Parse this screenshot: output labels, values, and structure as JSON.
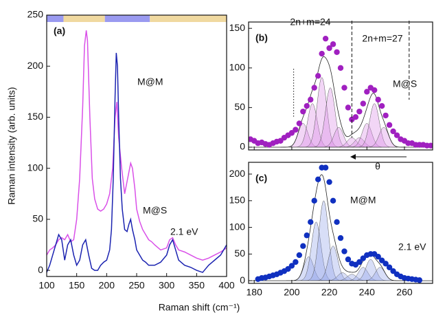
{
  "chart_data": [
    {
      "type": "line",
      "panel_label": "(a)",
      "xlabel": "Raman shift (cm⁻¹)",
      "ylabel": "Raman intensity (arb. units)",
      "xlim": [
        100,
        400
      ],
      "ylim": [
        -6,
        250
      ],
      "xticks": [
        100,
        150,
        200,
        250,
        300,
        350,
        400
      ],
      "yticks": [
        0,
        50,
        100,
        150,
        200,
        250
      ],
      "color_bar": [
        {
          "start": 100,
          "end": 128,
          "color": "#9a9af0"
        },
        {
          "start": 128,
          "end": 197,
          "color": "#f0d9a0"
        },
        {
          "start": 197,
          "end": 272,
          "color": "#9a9af0"
        },
        {
          "start": 272,
          "end": 400,
          "color": "#f0d9a0"
        }
      ],
      "series": [
        {
          "name": "M@S",
          "color": "#d94fe8",
          "x": [
            100,
            105,
            110,
            115,
            120,
            125,
            130,
            135,
            140,
            145,
            150,
            155,
            160,
            163,
            166,
            168,
            172,
            176,
            180,
            185,
            190,
            195,
            200,
            205,
            210,
            214,
            217,
            220,
            225,
            230,
            235,
            240,
            243,
            247,
            250,
            255,
            260,
            265,
            270,
            275,
            280,
            290,
            300,
            305,
            310,
            315,
            320,
            330,
            340,
            350,
            360,
            370,
            380,
            390,
            400
          ],
          "values": [
            15,
            20,
            22,
            25,
            30,
            32,
            30,
            35,
            28,
            30,
            50,
            90,
            160,
            220,
            235,
            225,
            150,
            90,
            70,
            60,
            58,
            60,
            65,
            75,
            100,
            150,
            165,
            130,
            100,
            75,
            90,
            105,
            100,
            80,
            60,
            48,
            40,
            35,
            30,
            28,
            25,
            20,
            22,
            30,
            32,
            25,
            20,
            18,
            15,
            12,
            10,
            12,
            15,
            18,
            22
          ]
        },
        {
          "name": "M@M",
          "color": "#1a22b0",
          "x": [
            100,
            105,
            110,
            115,
            120,
            125,
            130,
            135,
            140,
            145,
            150,
            155,
            160,
            165,
            170,
            175,
            180,
            185,
            190,
            195,
            200,
            205,
            208,
            211,
            214,
            216,
            218,
            220,
            223,
            226,
            230,
            234,
            237,
            240,
            243,
            247,
            250,
            255,
            260,
            265,
            270,
            280,
            290,
            300,
            305,
            310,
            315,
            320,
            330,
            340,
            350,
            360,
            370,
            380,
            390,
            400
          ],
          "values": [
            -2,
            5,
            15,
            25,
            35,
            30,
            10,
            25,
            30,
            15,
            5,
            10,
            25,
            30,
            15,
            2,
            0,
            0,
            5,
            8,
            10,
            20,
            40,
            90,
            170,
            213,
            200,
            150,
            90,
            60,
            40,
            38,
            45,
            50,
            40,
            30,
            20,
            15,
            10,
            8,
            5,
            5,
            8,
            15,
            25,
            30,
            20,
            10,
            5,
            3,
            0,
            -2,
            5,
            10,
            15,
            25
          ]
        }
      ],
      "annotations": [
        "2.1 eV"
      ]
    },
    {
      "type": "scatter",
      "panel_label": "(b)",
      "xlim": [
        177,
        275
      ],
      "ylim": [
        -3.5,
        158
      ],
      "xticks": [
        180,
        200,
        220,
        240,
        260
      ],
      "xtick_labels": false,
      "yticks": [
        0,
        50,
        100,
        150
      ],
      "series": [
        {
          "name": "M@S",
          "color": "#a020c0",
          "x": [
            178,
            180,
            182,
            184,
            186,
            188,
            190,
            192,
            194,
            196,
            198,
            200,
            202,
            204,
            206,
            208,
            210,
            212,
            214,
            216,
            218,
            220,
            222,
            224,
            226,
            228,
            230,
            232,
            234,
            236,
            238,
            240,
            242,
            244,
            246,
            248,
            250,
            252,
            254,
            256,
            258,
            260,
            262,
            264,
            266,
            268,
            270,
            272,
            274
          ],
          "values": [
            10,
            8,
            5,
            6,
            4,
            3,
            5,
            7,
            8,
            12,
            15,
            18,
            22,
            30,
            45,
            52,
            60,
            75,
            90,
            118,
            137,
            125,
            130,
            120,
            100,
            75,
            50,
            35,
            38,
            45,
            55,
            70,
            75,
            72,
            60,
            52,
            40,
            28,
            20,
            15,
            10,
            8,
            5,
            5,
            3,
            3,
            3,
            2,
            2
          ]
        }
      ],
      "components": {
        "color": "#d98ae6",
        "centers": [
          206,
          211,
          216,
          220.5,
          225,
          232,
          236,
          240,
          244,
          249
        ],
        "heights": [
          30,
          55,
          88,
          75,
          25,
          12,
          12,
          30,
          55,
          25
        ],
        "widths": [
          6,
          6,
          6,
          6,
          6,
          6,
          6,
          6,
          6,
          6
        ]
      },
      "ref_lines": [
        {
          "x": 201,
          "style": "dotted",
          "label": "2n+m=24"
        },
        {
          "x": 232,
          "style": "dashed",
          "label": "2n+m=27"
        },
        {
          "x": 262.5,
          "style": "dashed"
        }
      ],
      "arrow_label": "θ"
    },
    {
      "type": "scatter",
      "panel_label": "(c)",
      "xlim": [
        177,
        275
      ],
      "ylim": [
        -5,
        222
      ],
      "xticks": [
        180,
        200,
        220,
        240,
        260
      ],
      "yticks": [
        0,
        50,
        100,
        150,
        200
      ],
      "series": [
        {
          "name": "M@M",
          "color": "#1030c0",
          "x": [
            182,
            184,
            186,
            188,
            190,
            192,
            194,
            196,
            198,
            200,
            202,
            204,
            206,
            208,
            210,
            212,
            214,
            216,
            218,
            220,
            222,
            224,
            226,
            228,
            230,
            232,
            234,
            236,
            238,
            240,
            242,
            244,
            246,
            248,
            250,
            252,
            254,
            256,
            258,
            260,
            262,
            264,
            266,
            268
          ],
          "values": [
            3,
            5,
            6,
            8,
            10,
            12,
            15,
            18,
            22,
            28,
            35,
            48,
            65,
            85,
            110,
            150,
            190,
            212,
            212,
            185,
            150,
            110,
            80,
            55,
            40,
            32,
            30,
            35,
            42,
            48,
            50,
            50,
            45,
            38,
            32,
            25,
            18,
            12,
            8,
            5,
            4,
            3,
            2,
            1
          ]
        }
      ],
      "components": {
        "color": "#8fa0e8",
        "centers": [
          209,
          213,
          217,
          222,
          227,
          232,
          238,
          242,
          247
        ],
        "heights": [
          45,
          110,
          150,
          65,
          15,
          12,
          25,
          40,
          25
        ],
        "widths": [
          6,
          6,
          6,
          6,
          6,
          6,
          6,
          6,
          6
        ]
      },
      "annotations": [
        "2.1 eV"
      ]
    }
  ]
}
